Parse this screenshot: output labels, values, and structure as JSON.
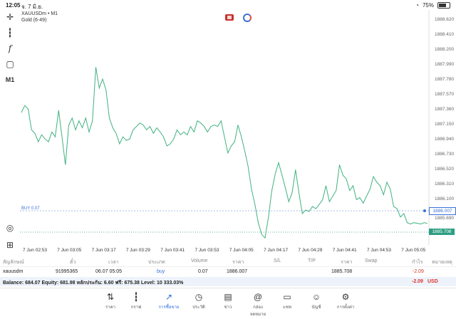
{
  "status_bar": {
    "time": "12:05",
    "date": "จ. 7 มิ.ย.",
    "battery": "75%"
  },
  "chart": {
    "symbol_title": "XAUUSDm • M1",
    "symbol_sub": "Gold (6-49)",
    "timeframe": "M1",
    "buy_label": "BUY 0.07",
    "buy_price": "1886.007",
    "current_price": "1885.708",
    "line_color": "#3fb27f",
    "y_ticks": [
      "1888.620",
      "1888.410",
      "1888.200",
      "1887.990",
      "1887.780",
      "1887.570",
      "1887.360",
      "1887.150",
      "1886.940",
      "1886.730",
      "1886.520",
      "1886.310",
      "1886.100",
      "1885.690"
    ],
    "x_ticks": [
      "7 Jun 02:53",
      "7 Jun 03:05",
      "7 Jun 03:17",
      "7 Jun 03:29",
      "7 Jun 03:41",
      "7 Jun 03:53",
      "7 Jun 04:05",
      "7 Jun 04:17",
      "7 Jun 04:29",
      "7 Jun 04:41",
      "7 Jun 04:53",
      "7 Jun 05:05"
    ]
  },
  "chart_data": {
    "type": "line",
    "ylim": [
      1885.4,
      1888.75
    ],
    "series_values": [
      1887.3,
      1887.4,
      1887.35,
      1887.05,
      1887.0,
      1886.88,
      1886.98,
      1886.92,
      1886.88,
      1887.02,
      1886.95,
      1887.33,
      1886.95,
      1886.55,
      1887.12,
      1887.22,
      1887.05,
      1887.18,
      1887.08,
      1887.22,
      1887.02,
      1887.18,
      1887.95,
      1887.65,
      1887.78,
      1887.62,
      1887.22,
      1887.08,
      1887.0,
      1886.85,
      1886.95,
      1886.9,
      1886.92,
      1887.05,
      1887.1,
      1887.15,
      1887.12,
      1887.05,
      1887.1,
      1887.0,
      1887.08,
      1887.02,
      1886.95,
      1886.82,
      1886.85,
      1886.92,
      1887.05,
      1886.98,
      1887.02,
      1886.98,
      1887.1,
      1887.02,
      1887.18,
      1887.15,
      1887.1,
      1887.02,
      1887.1,
      1887.12,
      1887.1,
      1887.18,
      1886.95,
      1886.72,
      1886.82,
      1886.88,
      1887.12,
      1886.95,
      1886.75,
      1886.52,
      1886.2,
      1885.98,
      1885.72,
      1885.55,
      1885.5,
      1885.8,
      1886.18,
      1886.42,
      1886.58,
      1886.4,
      1886.22,
      1886.02,
      1886.15,
      1886.48,
      1886.15,
      1885.85,
      1885.9,
      1885.88,
      1885.95,
      1885.92,
      1885.98,
      1886.05,
      1886.25,
      1886.02,
      1886.1,
      1886.18,
      1886.55,
      1886.4,
      1886.35,
      1886.18,
      1886.25,
      1886.05,
      1886.08,
      1886.0,
      1886.1,
      1886.2,
      1886.38,
      1886.3,
      1886.25,
      1886.12,
      1886.3,
      1886.2,
      1885.95,
      1885.92,
      1885.8,
      1885.85,
      1885.72,
      1885.7,
      1885.72,
      1885.71,
      1885.7,
      1885.72,
      1885.708
    ]
  },
  "table": {
    "headers": [
      "สัญลักษณ์",
      "ตั๋ว",
      "เวลา",
      "ประเภท",
      "Volume",
      "ราคา",
      "S/L",
      "T/P",
      "ราคา",
      "Swap",
      "กำไร",
      "หมายเหตุ"
    ],
    "row": {
      "symbol": "xauusdm",
      "ticket": "91995365",
      "time": "06.07 05:05",
      "type": "buy",
      "volume": "0.07",
      "price": "1886.007",
      "sl": "",
      "tp": "",
      "cur_price": "1885.708",
      "swap": "",
      "profit": "-2.09",
      "comment": ""
    }
  },
  "balance": {
    "text": "Balance: 684.07 Equity: 681.98 หลักประกัน: 6.60 ฟรี: 675.38 Level: 10 333.03%",
    "profit": "-2.09",
    "currency": "USD"
  },
  "nav": [
    {
      "label": "ราคา",
      "icon": "arrows-updown-icon"
    },
    {
      "label": "กราฟ",
      "icon": "candles-icon"
    },
    {
      "label": "การซื้อขาย",
      "icon": "trade-chart-icon",
      "active": true
    },
    {
      "label": "ประวัติ",
      "icon": "history-icon"
    },
    {
      "label": "ข่าว",
      "icon": "news-icon"
    },
    {
      "label": "กล่องจดหมาย",
      "icon": "mail-at-icon"
    },
    {
      "label": "แชท",
      "icon": "chat-icon"
    },
    {
      "label": "บัญชี",
      "icon": "account-icon"
    },
    {
      "label": "การตั้งค่า",
      "icon": "gear-icon"
    }
  ]
}
